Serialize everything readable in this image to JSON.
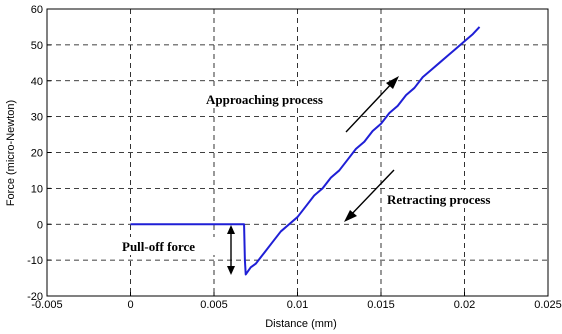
{
  "chart_data": {
    "type": "line",
    "title": "",
    "xlabel": "Distance (mm)",
    "ylabel": "Force (micro-Newton)",
    "xlim": [
      -0.005,
      0.025
    ],
    "ylim": [
      -20,
      60
    ],
    "xticks": [
      -0.005,
      0,
      0.005,
      0.01,
      0.015,
      0.02,
      0.025
    ],
    "xtick_labels": [
      "-0.005",
      "0",
      "0.005",
      "0.01",
      "0.015",
      "0.02",
      "0.025"
    ],
    "yticks": [
      -20,
      -10,
      0,
      10,
      20,
      30,
      40,
      50,
      60
    ],
    "ytick_labels": [
      "-20",
      "-10",
      "0",
      "10",
      "20",
      "30",
      "40",
      "50",
      "60"
    ],
    "grid": true,
    "line_color": "#1f1fd6",
    "series": [
      {
        "x": [
          0,
          0.005,
          0.0068,
          0.00685,
          0.0069,
          0.0072,
          0.0075,
          0.008,
          0.0085,
          0.009,
          0.0095,
          0.01,
          0.0105,
          0.011,
          0.0115,
          0.012,
          0.0125,
          0.013,
          0.0135,
          0.014,
          0.0145,
          0.015,
          0.0155,
          0.016,
          0.0165,
          0.017,
          0.0175,
          0.018,
          0.0185,
          0.019,
          0.0195,
          0.02,
          0.0205,
          0.0209
        ],
        "y": [
          0,
          0,
          0,
          -10,
          -14,
          -12,
          -11,
          -8,
          -5,
          -2,
          0,
          2,
          5,
          8,
          10,
          13,
          15,
          18,
          21,
          23,
          26,
          28,
          31,
          33,
          36,
          38,
          41,
          43,
          45,
          47,
          49,
          51,
          53,
          55
        ]
      }
    ],
    "annotations": [
      {
        "text": "Approaching process"
      },
      {
        "text": "Retracting process"
      },
      {
        "text": "Pull-off force"
      }
    ]
  }
}
